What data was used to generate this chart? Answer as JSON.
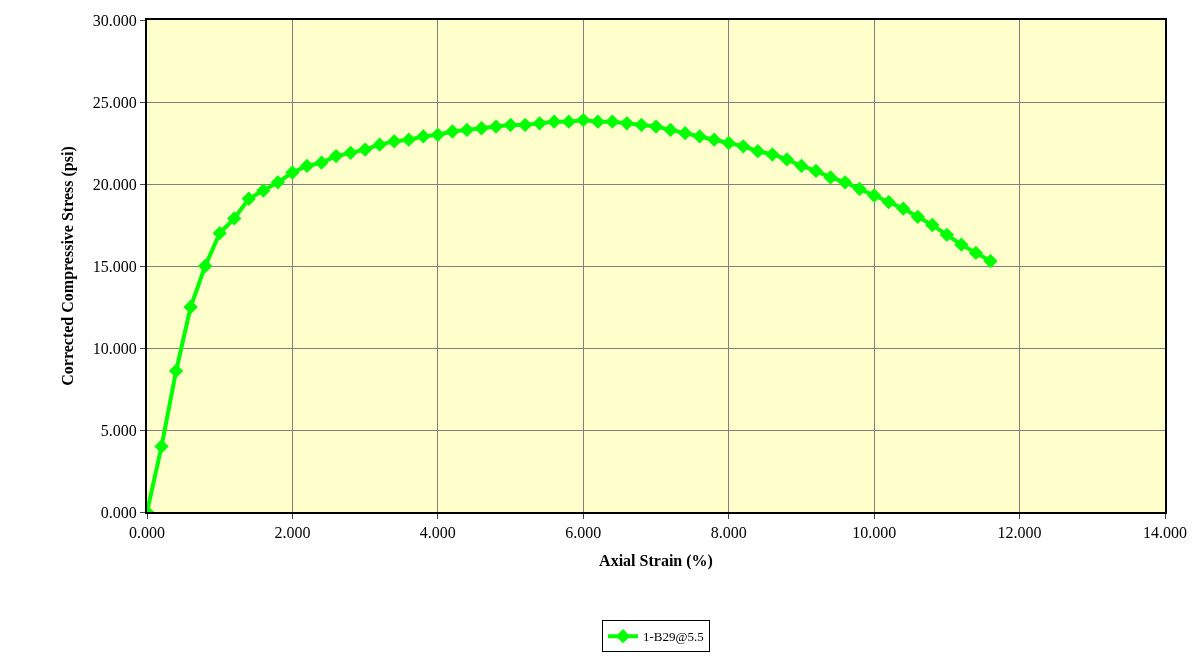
{
  "chart_data": {
    "type": "line",
    "xlabel": "Axial Strain (%)",
    "ylabel": "Corrected Compressive Stress (psi)",
    "x": [
      0,
      0.2,
      0.4,
      0.6,
      0.8,
      1.0,
      1.2,
      1.4,
      1.6,
      1.8,
      2.0,
      2.2,
      2.4,
      2.6,
      2.8,
      3.0,
      3.2,
      3.4,
      3.6,
      3.8,
      4.0,
      4.2,
      4.4,
      4.6,
      4.8,
      5.0,
      5.2,
      5.4,
      5.6,
      5.8,
      6.0,
      6.2,
      6.4,
      6.6,
      6.8,
      7.0,
      7.2,
      7.4,
      7.6,
      7.8,
      8.0,
      8.2,
      8.4,
      8.6,
      8.8,
      9.0,
      9.2,
      9.4,
      9.6,
      9.8,
      10.0,
      10.2,
      10.4,
      10.6,
      10.8,
      11.0,
      11.2,
      11.4,
      11.6
    ],
    "series": [
      {
        "name": "1-B29@5.5",
        "color": "#00ff00",
        "values": [
          0,
          4.0,
          8.6,
          12.5,
          15.0,
          17.0,
          17.9,
          19.1,
          19.6,
          20.1,
          20.7,
          21.1,
          21.3,
          21.7,
          21.9,
          22.1,
          22.4,
          22.6,
          22.7,
          22.9,
          23.0,
          23.2,
          23.3,
          23.4,
          23.5,
          23.6,
          23.6,
          23.7,
          23.8,
          23.8,
          23.9,
          23.8,
          23.8,
          23.7,
          23.6,
          23.5,
          23.3,
          23.1,
          22.9,
          22.7,
          22.5,
          22.3,
          22.0,
          21.8,
          21.5,
          21.1,
          20.8,
          20.4,
          20.1,
          19.7,
          19.3,
          18.9,
          18.5,
          18.0,
          17.5,
          16.9,
          16.3,
          15.8,
          15.3
        ]
      }
    ],
    "xlim": [
      0,
      14
    ],
    "xticks": [
      {
        "value": 0,
        "label": "0.000"
      },
      {
        "value": 2,
        "label": "2.000"
      },
      {
        "value": 4,
        "label": "4.000"
      },
      {
        "value": 6,
        "label": "6.000"
      },
      {
        "value": 8,
        "label": "8.000"
      },
      {
        "value": 10,
        "label": "10.000"
      },
      {
        "value": 12,
        "label": "12.000"
      },
      {
        "value": 14,
        "label": "14.000"
      }
    ],
    "ylim": [
      0,
      30
    ],
    "yticks": [
      {
        "value": 0,
        "label": "0.000"
      },
      {
        "value": 5,
        "label": "5.000"
      },
      {
        "value": 10,
        "label": "10.000"
      },
      {
        "value": 15,
        "label": "15.000"
      },
      {
        "value": 20,
        "label": "20.000"
      },
      {
        "value": 25,
        "label": "25.000"
      },
      {
        "value": 30,
        "label": "30.000"
      }
    ],
    "grid": true,
    "legend": "bottom",
    "marker": "diamond",
    "line_style": "solid"
  }
}
